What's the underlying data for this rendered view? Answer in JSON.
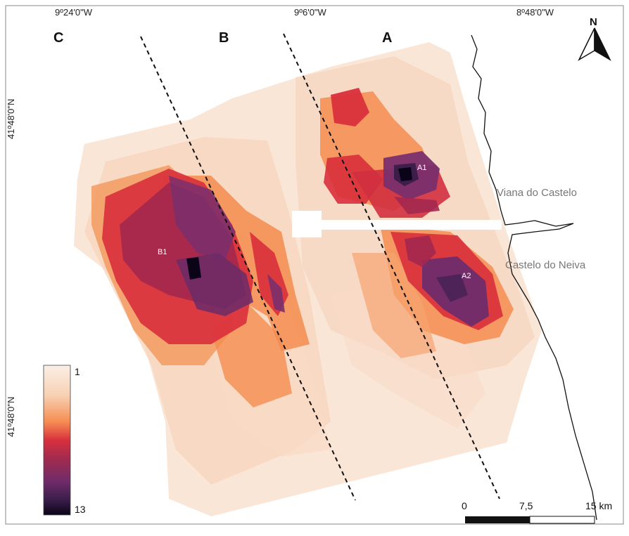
{
  "coords": {
    "lon_left": "9º24'0\"W",
    "lon_mid": "9º6'0\"W",
    "lon_right": "8º48'0\"W",
    "lat_top": "41º48'0\"N",
    "lat_bottom": "41º48'0\"N"
  },
  "zones": {
    "c": "C",
    "b": "B",
    "a": "A"
  },
  "north_label": "N",
  "places": {
    "viana": "Viana do Castelo",
    "neiva": "Castelo do Neiva"
  },
  "hotspots": {
    "a1": "A1",
    "a2": "A2",
    "b1": "B1"
  },
  "legend": {
    "min": "1",
    "max": "13",
    "colors": [
      "#fbe8db",
      "#f7c8a4",
      "#f58c50",
      "#d8303e",
      "#a32b4e",
      "#6e2c6a",
      "#3a1d4a",
      "#0b0418"
    ]
  },
  "scale_bar": {
    "labels": [
      "0",
      "7,5",
      "15 km"
    ]
  },
  "colors": {
    "low": "#f9e3d3",
    "orange": "#f48c4f",
    "red": "#d92f3c",
    "crimson": "#b32a45",
    "purple": "#7a2f6d",
    "dark": "#2a1633"
  }
}
